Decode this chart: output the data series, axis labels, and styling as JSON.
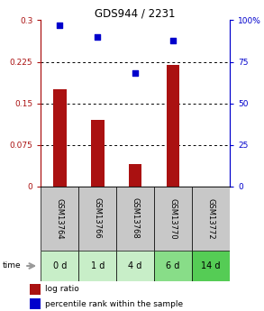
{
  "title": "GDS944 / 2231",
  "samples": [
    "GSM13764",
    "GSM13766",
    "GSM13768",
    "GSM13770",
    "GSM13772"
  ],
  "time_labels": [
    "0 d",
    "1 d",
    "4 d",
    "6 d",
    "14 d"
  ],
  "log_ratio": [
    0.175,
    0.12,
    0.04,
    0.22,
    0.0
  ],
  "percentile_rank": [
    97,
    90,
    68,
    88,
    0
  ],
  "bar_color": "#aa1111",
  "dot_color": "#0000cc",
  "left_yticks": [
    0,
    0.075,
    0.15,
    0.225,
    0.3
  ],
  "left_ylabels": [
    "0",
    "0.075",
    "0.15",
    "0.225",
    "0.3"
  ],
  "right_yticks": [
    0,
    25,
    50,
    75,
    100
  ],
  "right_ylabels": [
    "0",
    "25",
    "50",
    "75",
    "100%"
  ],
  "ylim_left": [
    0,
    0.3
  ],
  "ylim_right": [
    0,
    100
  ],
  "sample_bg_color": "#c8c8c8",
  "time_bg_colors": [
    "#c8eec8",
    "#c8eec8",
    "#c8eec8",
    "#88dd88",
    "#55cc55"
  ],
  "legend_bar_label": "log ratio",
  "legend_dot_label": "percentile rank within the sample",
  "time_arrow_color": "#999999",
  "fig_width": 2.93,
  "fig_height": 3.45,
  "dpi": 100
}
